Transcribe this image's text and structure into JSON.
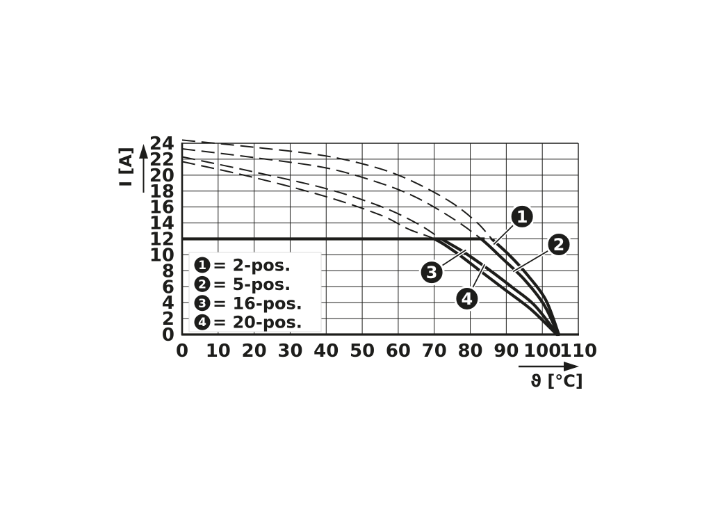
{
  "figure": {
    "background": "#ffffff",
    "ink": "#1d1d1b"
  },
  "chart_data": {
    "type": "line",
    "xlabel": "ϑ [°C]",
    "ylabel": "I [A]",
    "xlim": [
      0,
      110
    ],
    "ylim": [
      0,
      24
    ],
    "x_ticks": [
      0,
      10,
      20,
      30,
      40,
      50,
      60,
      70,
      80,
      90,
      100,
      110
    ],
    "y_ticks": [
      0,
      2,
      4,
      6,
      8,
      10,
      12,
      14,
      16,
      18,
      20,
      22,
      24
    ],
    "grid": true,
    "legend_position": "inside-lower-left",
    "rated_current_A": 12,
    "rated_line_end_C": 84,
    "line_style_note": "curves dashed above 12 A rated limit, solid below",
    "series": [
      {
        "id": "1",
        "name": "2-pos.",
        "points": [
          [
            0,
            24.4
          ],
          [
            20,
            23.5
          ],
          [
            40,
            22.4
          ],
          [
            55,
            20.8
          ],
          [
            65,
            19.0
          ],
          [
            75,
            16.5
          ],
          [
            82,
            14.0
          ],
          [
            86,
            12.0
          ],
          [
            91,
            9.9
          ],
          [
            96,
            7.4
          ],
          [
            101,
            4.3
          ],
          [
            104.6,
            0
          ]
        ]
      },
      {
        "id": "2",
        "name": "5-pos.",
        "points": [
          [
            0,
            23.3
          ],
          [
            20,
            22.2
          ],
          [
            40,
            20.9
          ],
          [
            55,
            19.0
          ],
          [
            65,
            17.2
          ],
          [
            75,
            14.6
          ],
          [
            83,
            12.0
          ],
          [
            89,
            9.5
          ],
          [
            95,
            6.9
          ],
          [
            100.5,
            3.7
          ],
          [
            104.4,
            0
          ]
        ]
      },
      {
        "id": "3",
        "name": "16-pos.",
        "points": [
          [
            0,
            22.3
          ],
          [
            20,
            20.4
          ],
          [
            40,
            18.3
          ],
          [
            55,
            16.1
          ],
          [
            65,
            14.0
          ],
          [
            72,
            12.0
          ],
          [
            78,
            10.4
          ],
          [
            85,
            8.2
          ],
          [
            92,
            5.8
          ],
          [
            98,
            3.6
          ],
          [
            104.2,
            0
          ]
        ]
      },
      {
        "id": "4",
        "name": "20-pos.",
        "points": [
          [
            0,
            21.7
          ],
          [
            20,
            19.7
          ],
          [
            40,
            17.3
          ],
          [
            55,
            15.0
          ],
          [
            63,
            13.2
          ],
          [
            70,
            12.0
          ],
          [
            76,
            10.3
          ],
          [
            83,
            7.9
          ],
          [
            90,
            5.5
          ],
          [
            97,
            3.1
          ],
          [
            104,
            0
          ]
        ]
      }
    ],
    "callouts": [
      {
        "num": "1",
        "at": [
          94.4,
          14.8
        ],
        "target": [
          86.5,
          11.3
        ]
      },
      {
        "num": "2",
        "at": [
          104.6,
          11.3
        ],
        "target": [
          91.9,
          7.9
        ]
      },
      {
        "num": "3",
        "at": [
          69.3,
          7.8
        ],
        "target": [
          78.8,
          10.6
        ]
      },
      {
        "num": "4",
        "at": [
          79.1,
          4.5
        ],
        "target": [
          84.0,
          8.8
        ]
      }
    ],
    "legend": [
      {
        "marker": "1",
        "label": "= 2-pos."
      },
      {
        "marker": "2",
        "label": "= 5-pos."
      },
      {
        "marker": "3",
        "label": "= 16-pos."
      },
      {
        "marker": "4",
        "label": "= 20-pos."
      }
    ]
  }
}
